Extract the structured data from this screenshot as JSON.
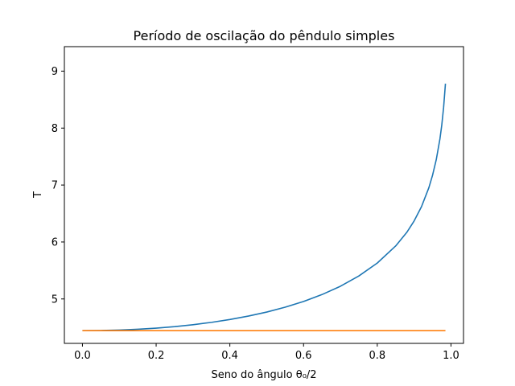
{
  "chart_data": {
    "type": "line",
    "title": "Período de oscilação do pêndulo simples",
    "xlabel": "Seno do ângulo θ₀/2",
    "ylabel": "T",
    "xlim": [
      -0.049,
      1.034
    ],
    "ylim": [
      4.22,
      9.43
    ],
    "grid": false,
    "x_ticks": [
      0.0,
      0.2,
      0.4,
      0.6,
      0.8,
      1.0
    ],
    "x_tick_labels": [
      "0.0",
      "0.2",
      "0.4",
      "0.6",
      "0.8",
      "1.0"
    ],
    "y_ticks": [
      5,
      6,
      7,
      8,
      9
    ],
    "y_tick_labels": [
      "5",
      "6",
      "7",
      "8",
      "9"
    ],
    "series": [
      {
        "color": "#1f77b4",
        "x": [
          0.0,
          0.05,
          0.1,
          0.15,
          0.2,
          0.25,
          0.3,
          0.35,
          0.4,
          0.45,
          0.5,
          0.55,
          0.6,
          0.65,
          0.7,
          0.75,
          0.8,
          0.85,
          0.88,
          0.9,
          0.92,
          0.94,
          0.95,
          0.96,
          0.97,
          0.975,
          0.98,
          0.985
        ],
        "y": [
          4.443,
          4.446,
          4.454,
          4.468,
          4.488,
          4.514,
          4.548,
          4.589,
          4.639,
          4.699,
          4.77,
          4.855,
          4.956,
          5.077,
          5.223,
          5.403,
          5.63,
          5.931,
          6.168,
          6.369,
          6.62,
          6.953,
          7.172,
          7.443,
          7.808,
          8.051,
          8.361,
          8.78
        ]
      },
      {
        "color": "#ff7f0e",
        "x": [
          0.0,
          0.985
        ],
        "y": [
          4.443,
          4.443
        ]
      }
    ]
  }
}
